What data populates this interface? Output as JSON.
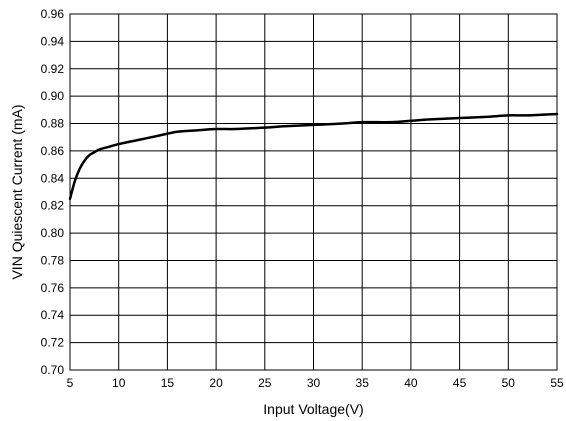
{
  "chart_data": {
    "type": "line",
    "title": "",
    "xlabel": "Input Voltage(V)",
    "ylabel": "VIN Quiescent Current (mA)",
    "xlim": [
      5,
      55
    ],
    "ylim": [
      0.7,
      0.96
    ],
    "grid": true,
    "x_ticks": [
      "5",
      "10",
      "15",
      "20",
      "25",
      "30",
      "35",
      "40",
      "45",
      "50",
      "55"
    ],
    "y_ticks": [
      "0.70",
      "0.72",
      "0.74",
      "0.76",
      "0.78",
      "0.80",
      "0.82",
      "0.84",
      "0.86",
      "0.88",
      "0.90",
      "0.92",
      "0.94",
      "0.96"
    ],
    "series": [
      {
        "color": "#000000",
        "x": [
          5,
          5.5,
          6,
          6.5,
          7,
          7.5,
          8,
          9,
          10,
          12,
          14,
          16,
          18,
          20,
          22,
          25,
          27,
          30,
          33,
          35,
          38,
          40,
          42,
          45,
          48,
          50,
          52,
          55
        ],
        "y": [
          0.825,
          0.838,
          0.847,
          0.853,
          0.857,
          0.859,
          0.861,
          0.863,
          0.865,
          0.868,
          0.871,
          0.874,
          0.875,
          0.876,
          0.876,
          0.877,
          0.878,
          0.879,
          0.88,
          0.881,
          0.881,
          0.882,
          0.883,
          0.884,
          0.885,
          0.886,
          0.886,
          0.887
        ]
      }
    ]
  }
}
